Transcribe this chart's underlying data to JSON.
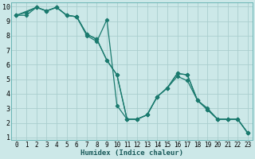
{
  "xlabel": "Humidex (Indice chaleur)",
  "bg_color": "#cce8e8",
  "grid_color": "#aacece",
  "line_color": "#1a7a6e",
  "xlim": [
    -0.5,
    23.5
  ],
  "ylim": [
    0.8,
    10.3
  ],
  "xticks": [
    0,
    1,
    2,
    3,
    4,
    5,
    6,
    7,
    8,
    9,
    10,
    11,
    12,
    13,
    14,
    15,
    16,
    17,
    18,
    19,
    20,
    21,
    22,
    23
  ],
  "yticks": [
    1,
    2,
    3,
    4,
    5,
    6,
    7,
    8,
    9,
    10
  ],
  "line1_x": [
    0,
    1,
    2,
    3,
    4,
    5,
    6,
    7,
    8,
    9,
    10,
    11,
    12,
    13,
    14,
    15,
    16,
    17,
    18,
    19,
    20,
    21,
    22,
    23
  ],
  "line1_y": [
    9.4,
    9.6,
    9.95,
    9.7,
    9.95,
    9.4,
    9.3,
    8.0,
    7.6,
    9.1,
    3.2,
    2.25,
    2.25,
    2.55,
    3.8,
    4.4,
    5.4,
    5.3,
    3.55,
    2.9,
    2.25,
    2.25,
    2.25,
    1.3
  ],
  "line2_x": [
    0,
    1,
    2,
    3,
    4,
    5,
    6,
    7,
    8,
    9,
    10,
    11,
    12,
    13,
    14,
    15,
    16,
    17,
    18,
    19,
    20,
    21,
    22,
    23
  ],
  "line2_y": [
    9.4,
    9.4,
    9.95,
    9.7,
    9.95,
    9.4,
    9.3,
    8.1,
    7.75,
    6.3,
    5.3,
    2.25,
    2.25,
    2.55,
    3.8,
    4.4,
    5.2,
    4.9,
    3.55,
    2.9,
    2.25,
    2.25,
    2.25,
    1.3
  ],
  "line3_x": [
    0,
    2,
    3,
    4,
    5,
    6,
    7,
    8,
    9,
    10,
    11,
    12,
    13,
    14,
    15,
    16,
    17,
    18,
    19,
    20,
    21,
    22,
    23
  ],
  "line3_y": [
    9.4,
    9.95,
    9.7,
    9.95,
    9.4,
    9.3,
    8.1,
    7.75,
    6.3,
    5.3,
    2.25,
    2.25,
    2.55,
    3.8,
    4.4,
    5.4,
    5.3,
    3.55,
    3.0,
    2.25,
    2.25,
    2.25,
    1.3
  ],
  "xlabel_fontsize": 6.5,
  "tick_fontsize": 5.5
}
